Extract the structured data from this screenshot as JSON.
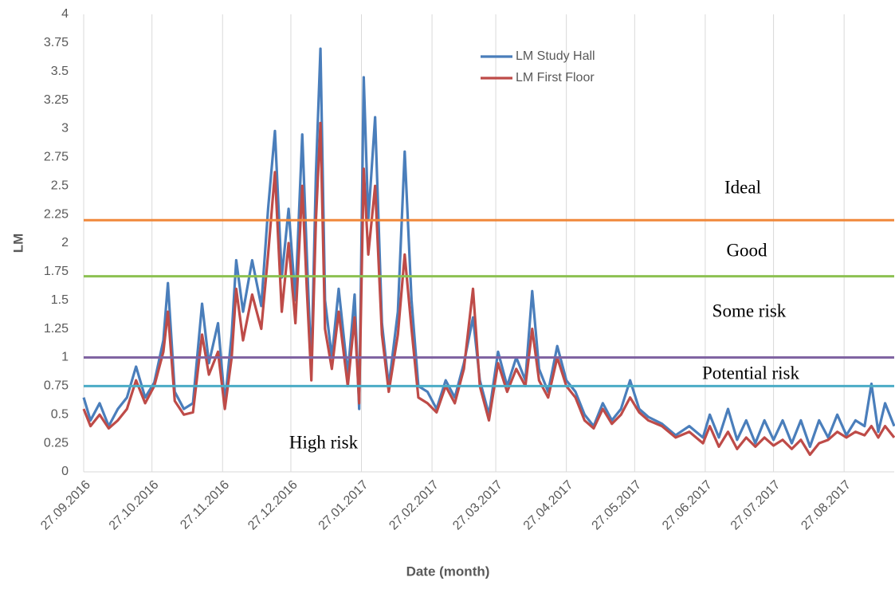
{
  "chart_data": {
    "type": "line",
    "x_label": "Date (month)",
    "y_label": "LM",
    "x": [
      "27.09.2016",
      "30.09.2016",
      "04.10.2016",
      "08.10.2016",
      "12.10.2016",
      "16.10.2016",
      "20.10.2016",
      "24.10.2016",
      "28.10.2016",
      "01.11.2016",
      "03.11.2016",
      "06.11.2016",
      "10.11.2016",
      "14.11.2016",
      "18.11.2016",
      "21.11.2016",
      "25.11.2016",
      "28.11.2016",
      "01.12.2016",
      "03.12.2016",
      "06.12.2016",
      "10.12.2016",
      "14.12.2016",
      "17.12.2016",
      "20.12.2016",
      "23.12.2016",
      "26.12.2016",
      "29.12.2016",
      "01.01.2017",
      "03.01.2017",
      "05.01.2017",
      "07.01.2017",
      "09.01.2017",
      "11.01.2017",
      "14.01.2017",
      "17.01.2017",
      "21.01.2017",
      "24.01.2017",
      "26.01.2017",
      "28.01.2017",
      "30.01.2017",
      "02.02.2017",
      "05.02.2017",
      "08.02.2017",
      "12.02.2017",
      "15.02.2017",
      "18.02.2017",
      "21.02.2017",
      "25.02.2017",
      "01.03.2017",
      "05.03.2017",
      "09.03.2017",
      "13.03.2017",
      "17.03.2017",
      "20.03.2017",
      "24.03.2017",
      "28.03.2017",
      "01.04.2017",
      "05.04.2017",
      "09.04.2017",
      "12.04.2017",
      "15.04.2017",
      "19.04.2017",
      "23.04.2017",
      "27.04.2017",
      "01.05.2017",
      "05.05.2017",
      "09.05.2017",
      "13.05.2017",
      "17.05.2017",
      "21.05.2017",
      "25.05.2017",
      "29.05.2017",
      "02.06.2017",
      "08.06.2017",
      "14.06.2017",
      "20.06.2017",
      "26.06.2017",
      "29.06.2017",
      "03.07.2017",
      "07.07.2017",
      "11.07.2017",
      "15.07.2017",
      "19.07.2017",
      "23.07.2017",
      "27.07.2017",
      "31.07.2017",
      "04.08.2017",
      "08.08.2017",
      "12.08.2017",
      "16.08.2017",
      "20.08.2017",
      "24.08.2017",
      "28.08.2017",
      "01.09.2017",
      "05.09.2017",
      "08.09.2017",
      "11.09.2017",
      "14.09.2017",
      "18.09.2017"
    ],
    "series": [
      {
        "name": "LM Study Hall",
        "color": "#4a7ebb",
        "values": [
          0.65,
          0.45,
          0.6,
          0.4,
          0.55,
          0.65,
          0.92,
          0.65,
          0.78,
          1.15,
          1.65,
          0.7,
          0.55,
          0.6,
          1.47,
          0.95,
          1.3,
          0.6,
          1.2,
          1.85,
          1.4,
          1.85,
          1.45,
          2.3,
          2.98,
          1.7,
          2.3,
          1.5,
          2.95,
          1.9,
          0.9,
          2.6,
          3.7,
          1.5,
          1.0,
          1.6,
          0.85,
          1.55,
          0.55,
          3.45,
          2.2,
          3.1,
          1.3,
          0.75,
          1.4,
          2.8,
          1.5,
          0.75,
          0.7,
          0.55,
          0.8,
          0.65,
          0.95,
          1.35,
          0.8,
          0.5,
          1.05,
          0.75,
          1.0,
          0.8,
          1.58,
          0.9,
          0.7,
          1.1,
          0.8,
          0.7,
          0.5,
          0.4,
          0.6,
          0.45,
          0.55,
          0.8,
          0.55,
          0.48,
          0.42,
          0.32,
          0.4,
          0.3,
          0.5,
          0.3,
          0.55,
          0.28,
          0.45,
          0.25,
          0.45,
          0.28,
          0.45,
          0.25,
          0.45,
          0.22,
          0.45,
          0.3,
          0.5,
          0.32,
          0.45,
          0.4,
          0.77,
          0.35,
          0.6,
          0.4
        ]
      },
      {
        "name": "LM First Floor",
        "color": "#be4b48",
        "values": [
          0.55,
          0.4,
          0.5,
          0.38,
          0.45,
          0.55,
          0.8,
          0.6,
          0.75,
          1.05,
          1.4,
          0.62,
          0.5,
          0.52,
          1.2,
          0.85,
          1.05,
          0.55,
          1.0,
          1.6,
          1.15,
          1.55,
          1.25,
          1.9,
          2.62,
          1.4,
          2.0,
          1.3,
          2.5,
          1.6,
          0.8,
          2.2,
          3.05,
          1.25,
          0.9,
          1.4,
          0.75,
          1.35,
          0.6,
          2.65,
          1.9,
          2.5,
          1.2,
          0.7,
          1.2,
          1.9,
          1.25,
          0.65,
          0.6,
          0.52,
          0.75,
          0.6,
          0.9,
          1.6,
          0.75,
          0.45,
          0.95,
          0.7,
          0.9,
          0.75,
          1.25,
          0.8,
          0.65,
          1.0,
          0.75,
          0.65,
          0.45,
          0.38,
          0.55,
          0.42,
          0.5,
          0.65,
          0.52,
          0.45,
          0.4,
          0.3,
          0.35,
          0.25,
          0.4,
          0.22,
          0.35,
          0.2,
          0.3,
          0.22,
          0.3,
          0.23,
          0.28,
          0.2,
          0.28,
          0.15,
          0.25,
          0.28,
          0.35,
          0.3,
          0.35,
          0.32,
          0.4,
          0.3,
          0.4,
          0.3
        ]
      }
    ],
    "xlim": [
      "27.09.2016",
      "18.09.2017"
    ],
    "xticks": [
      "27.09.2016",
      "27.10.2016",
      "27.11.2016",
      "27.12.2016",
      "27.01.2017",
      "27.02.2017",
      "27.03.2017",
      "27.04.2017",
      "27.05.2017",
      "27.06.2017",
      "27.07.2017",
      "27.08.2017"
    ],
    "ylim": [
      0,
      4
    ],
    "yticks": [
      0,
      0.25,
      0.5,
      0.75,
      1,
      1.25,
      1.5,
      1.75,
      2,
      2.25,
      2.5,
      2.75,
      3,
      3.25,
      3.5,
      3.75,
      4
    ],
    "grid": "x",
    "legend": "top",
    "thresholds": [
      {
        "value": 2.2,
        "color": "#f0883a"
      },
      {
        "value": 1.71,
        "color": "#8cc152"
      },
      {
        "value": 1,
        "color": "#8064a2"
      },
      {
        "value": 0.75,
        "color": "#4bacc6"
      }
    ],
    "annotations": [
      "Ideal",
      "Good",
      "Some risk",
      "Potential risk",
      "High risk"
    ]
  }
}
